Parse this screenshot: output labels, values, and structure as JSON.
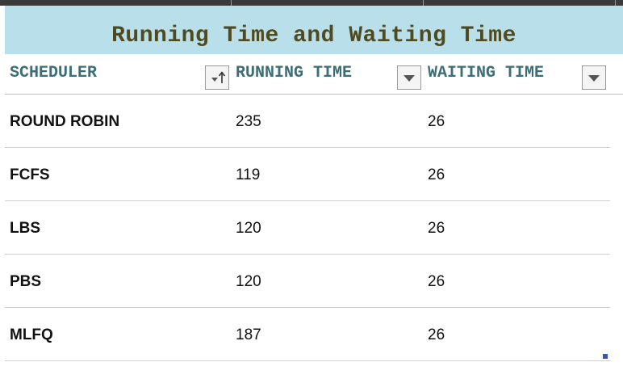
{
  "table": {
    "title": "Running Time and Waiting Time",
    "columns": [
      {
        "label": "SCHEDULER",
        "filter_icon": "sort-ascending-icon"
      },
      {
        "label": "RUNNING TIME",
        "filter_icon": "dropdown-arrow-icon"
      },
      {
        "label": "WAITING TIME",
        "filter_icon": "dropdown-arrow-icon"
      }
    ],
    "rows": [
      {
        "scheduler": "ROUND ROBIN",
        "running_time": "235",
        "waiting_time": "26"
      },
      {
        "scheduler": "FCFS",
        "running_time": "119",
        "waiting_time": "26"
      },
      {
        "scheduler": "LBS",
        "running_time": "120",
        "waiting_time": "26"
      },
      {
        "scheduler": "PBS",
        "running_time": "120",
        "waiting_time": "26"
      },
      {
        "scheduler": "MLFQ",
        "running_time": "187",
        "waiting_time": "26"
      }
    ]
  },
  "colors": {
    "title_background": "#b9e0ea",
    "title_text": "#4f4a20",
    "header_text": "#3b6e76"
  }
}
